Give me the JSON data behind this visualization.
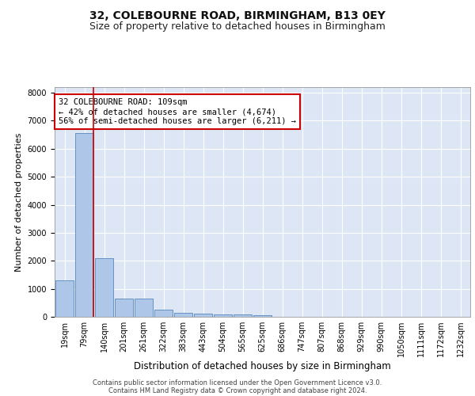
{
  "title1": "32, COLEBOURNE ROAD, BIRMINGHAM, B13 0EY",
  "title2": "Size of property relative to detached houses in Birmingham",
  "xlabel": "Distribution of detached houses by size in Birmingham",
  "ylabel": "Number of detached properties",
  "footer1": "Contains HM Land Registry data © Crown copyright and database right 2024.",
  "footer2": "Contains public sector information licensed under the Open Government Licence v3.0.",
  "categories": [
    "19sqm",
    "79sqm",
    "140sqm",
    "201sqm",
    "261sqm",
    "322sqm",
    "383sqm",
    "443sqm",
    "504sqm",
    "565sqm",
    "625sqm",
    "686sqm",
    "747sqm",
    "807sqm",
    "868sqm",
    "929sqm",
    "990sqm",
    "1050sqm",
    "1111sqm",
    "1172sqm",
    "1232sqm"
  ],
  "values": [
    1300,
    6550,
    2080,
    650,
    650,
    260,
    140,
    120,
    90,
    90,
    50,
    0,
    0,
    0,
    0,
    0,
    0,
    0,
    0,
    0,
    0
  ],
  "bar_color": "#aec6e8",
  "bar_edge_color": "#5588bb",
  "vline_color": "#cc0000",
  "annotation_text": "32 COLEBOURNE ROAD: 109sqm\n← 42% of detached houses are smaller (4,674)\n56% of semi-detached houses are larger (6,211) →",
  "annotation_box_color": "#ffffff",
  "annotation_box_edge": "#cc0000",
  "ylim": [
    0,
    8200
  ],
  "yticks": [
    0,
    1000,
    2000,
    3000,
    4000,
    5000,
    6000,
    7000,
    8000
  ],
  "bg_color": "#dce6f5",
  "grid_color": "#ffffff",
  "fig_bg_color": "#ffffff",
  "title1_fontsize": 10,
  "title2_fontsize": 9,
  "xlabel_fontsize": 8.5,
  "ylabel_fontsize": 8,
  "tick_fontsize": 7,
  "annotation_fontsize": 7.5,
  "footer_fontsize": 6
}
